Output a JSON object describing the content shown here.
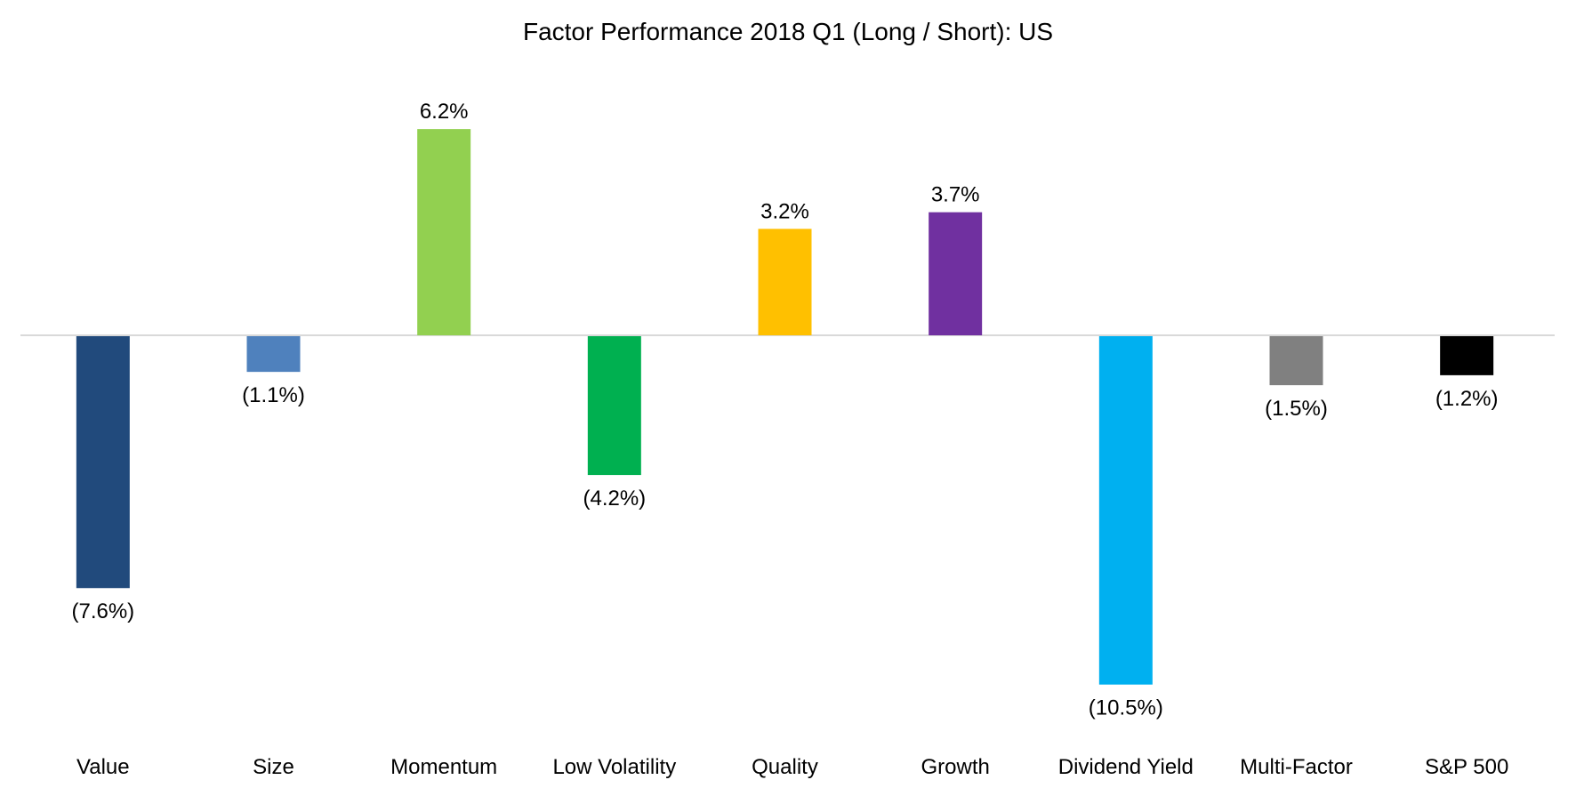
{
  "chart_data": {
    "type": "bar",
    "title": "Factor Performance 2018 Q1 (Long / Short): US",
    "xlabel": "",
    "ylabel": "",
    "ylim": [
      -10.5,
      6.2
    ],
    "grid": false,
    "legend": "none",
    "categories": [
      "Value",
      "Size",
      "Momentum",
      "Low Volatility",
      "Quality",
      "Growth",
      "Dividend Yield",
      "Multi-Factor",
      "S&P 500"
    ],
    "values": [
      -7.6,
      -1.1,
      6.2,
      -4.2,
      3.2,
      3.7,
      -10.5,
      -1.5,
      -1.2
    ],
    "value_labels": [
      "(7.6%)",
      "(1.1%)",
      "6.2%",
      "(4.2%)",
      "3.2%",
      "3.7%",
      "(10.5%)",
      "(1.5%)",
      "(1.2%)"
    ],
    "colors": [
      "#214A7C",
      "#4F81BD",
      "#92D050",
      "#00B050",
      "#FFC000",
      "#7030A0",
      "#00B0F0",
      "#808080",
      "#000000"
    ],
    "axis_color": "#D9D9D9",
    "unit": "%"
  }
}
